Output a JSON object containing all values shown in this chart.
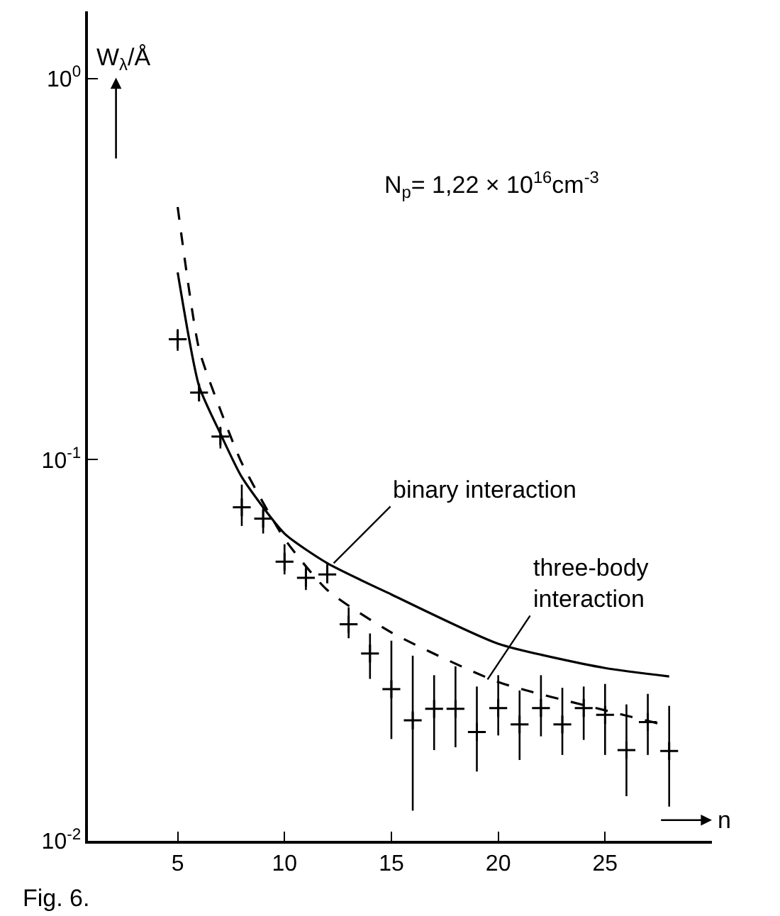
{
  "chart_data": {
    "type": "scatter",
    "xlabel": "n",
    "ylabel": "W$_{λ}$/Å",
    "log": "y",
    "xlim": [
      0.8,
      30
    ],
    "xticks": [
      5,
      10,
      15,
      20,
      25
    ],
    "ylim": [
      0.01,
      1.5
    ],
    "yticks": [
      {
        "value": 1,
        "label": "10$^{0}$"
      },
      {
        "value": 0.1,
        "label": "10$^{-1}$"
      },
      {
        "value": 0.01,
        "label": "10$^{-2}$"
      }
    ],
    "series": [
      {
        "color": "#000000",
        "marker": "cross",
        "x": [
          5,
          6,
          7,
          8,
          9,
          10,
          11,
          12,
          13,
          14,
          15,
          16,
          17,
          18,
          19,
          20,
          21,
          22,
          23,
          24,
          25,
          26,
          27,
          28
        ],
        "values": [
          0.207,
          0.15,
          0.115,
          0.075,
          0.07,
          0.054,
          0.049,
          0.05,
          0.037,
          0.031,
          0.025,
          0.0207,
          0.0222,
          0.0222,
          0.0193,
          0.0223,
          0.0202,
          0.0223,
          0.0202,
          0.0223,
          0.0214,
          0.0173,
          0.0205,
          0.0172
        ],
        "errors": [
          [
            0.193,
            0.22
          ],
          [
            0.143,
            0.156
          ],
          [
            0.107,
            0.122
          ],
          [
            0.067,
            0.086
          ],
          [
            0.064,
            0.075
          ],
          [
            0.05,
            0.06
          ],
          [
            0.0455,
            0.0527
          ],
          [
            0.048,
            0.0535
          ],
          [
            0.034,
            0.041
          ],
          [
            0.0266,
            0.035
          ],
          [
            0.0185,
            0.0335
          ],
          [
            0.012,
            0.0306
          ],
          [
            0.0173,
            0.0272
          ],
          [
            0.0176,
            0.0287
          ],
          [
            0.0152,
            0.0254
          ],
          [
            0.0189,
            0.0272
          ],
          [
            0.0163,
            0.0248
          ],
          [
            0.0188,
            0.0272
          ],
          [
            0.0168,
            0.0252
          ],
          [
            0.0184,
            0.0254
          ],
          [
            0.0168,
            0.0258
          ],
          [
            0.0131,
            0.0228
          ],
          [
            0.0168,
            0.0243
          ],
          [
            0.0123,
            0.0226
          ]
        ]
      },
      {
        "type": "line",
        "color": "#000000",
        "line_style": "solid",
        "marker": "none",
        "x": [
          5,
          6,
          7,
          8,
          10,
          12,
          15,
          20,
          25,
          28
        ],
        "values": [
          0.31,
          0.156,
          0.117,
          0.09,
          0.064,
          0.0535,
          0.0443,
          0.0329,
          0.0284,
          0.027
        ]
      },
      {
        "type": "line",
        "color": "#000000",
        "line_style": "dashed",
        "marker": "none",
        "x": [
          5,
          6,
          7,
          8,
          10,
          12,
          15,
          20,
          25,
          28
        ],
        "values": [
          0.46,
          0.195,
          0.135,
          0.098,
          0.062,
          0.0455,
          0.0352,
          0.0261,
          0.022,
          0.02
        ]
      }
    ],
    "annotations": [
      {
        "text": "binary interaction",
        "x": 12.3,
        "y": 0.0535
      },
      {
        "text": "three-body\ninteraction",
        "x": 19.5,
        "y": 0.0265
      },
      "N$_{p}$= 1,22 × 10$^{16}$cm$^{-3}$",
      "Fig. 6."
    ]
  }
}
